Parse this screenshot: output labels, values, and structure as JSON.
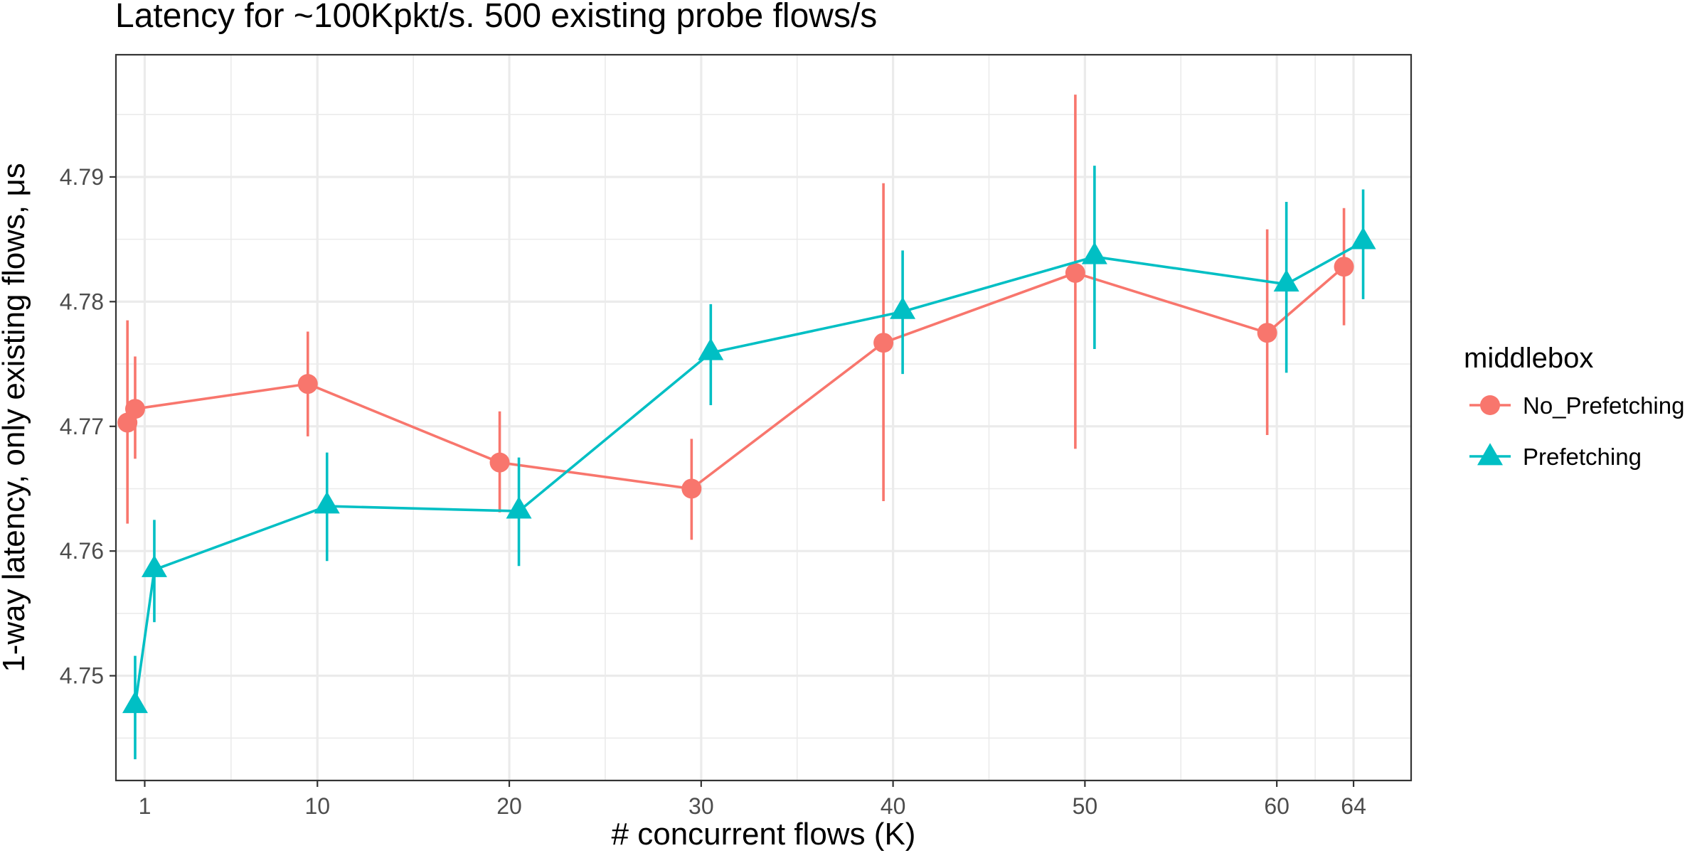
{
  "chart_data": {
    "type": "line",
    "title": "Latency for ~100Kpkt/s. 500 existing probe flows/s",
    "xlabel": "# concurrent flows (K)",
    "ylabel": "1-way latency, only existing flows, μs",
    "xlim": [
      -0.5,
      67.0
    ],
    "ylim": [
      4.7416,
      4.7998
    ],
    "x_ticks": [
      1,
      10,
      20,
      30,
      40,
      50,
      60,
      64
    ],
    "x_tick_labels": [
      "1",
      "10",
      "20",
      "30",
      "40",
      "50",
      "60",
      "64"
    ],
    "y_ticks": [
      4.75,
      4.76,
      4.77,
      4.78,
      4.79
    ],
    "y_tick_labels": [
      "4.75",
      "4.76",
      "4.77",
      "4.78",
      "4.79"
    ],
    "grid": true,
    "legend": {
      "title": "middlebox",
      "position": "right"
    },
    "series": [
      {
        "name": "No_Prefetching",
        "color": "#F8766D",
        "marker": "circle",
        "points": [
          {
            "x": 0.1,
            "y": 4.7703,
            "ymin": 4.7622,
            "ymax": 4.7785
          },
          {
            "x": 0.5,
            "y": 4.7714,
            "ymin": 4.7674,
            "ymax": 4.7756
          },
          {
            "x": 9.5,
            "y": 4.7734,
            "ymin": 4.7692,
            "ymax": 4.7776
          },
          {
            "x": 19.5,
            "y": 4.7671,
            "ymin": 4.7631,
            "ymax": 4.7712
          },
          {
            "x": 29.5,
            "y": 4.765,
            "ymin": 4.7609,
            "ymax": 4.769
          },
          {
            "x": 39.5,
            "y": 4.7767,
            "ymin": 4.764,
            "ymax": 4.7895
          },
          {
            "x": 49.5,
            "y": 4.7823,
            "ymin": 4.7682,
            "ymax": 4.7966
          },
          {
            "x": 59.5,
            "y": 4.7775,
            "ymin": 4.7693,
            "ymax": 4.7858
          },
          {
            "x": 63.5,
            "y": 4.7828,
            "ymin": 4.7781,
            "ymax": 4.7875
          }
        ]
      },
      {
        "name": "Prefetching",
        "color": "#00BFC4",
        "marker": "triangle",
        "points": [
          {
            "x": 0.5,
            "y": 4.7476,
            "ymin": 4.7433,
            "ymax": 4.7516
          },
          {
            "x": 1.5,
            "y": 4.7585,
            "ymin": 4.7543,
            "ymax": 4.7625
          },
          {
            "x": 10.5,
            "y": 4.7636,
            "ymin": 4.7592,
            "ymax": 4.7679
          },
          {
            "x": 20.5,
            "y": 4.7632,
            "ymin": 4.7588,
            "ymax": 4.7675
          },
          {
            "x": 30.5,
            "y": 4.7759,
            "ymin": 4.7717,
            "ymax": 4.7798
          },
          {
            "x": 40.5,
            "y": 4.7792,
            "ymin": 4.7742,
            "ymax": 4.7841
          },
          {
            "x": 50.5,
            "y": 4.7836,
            "ymin": 4.7762,
            "ymax": 4.7909
          },
          {
            "x": 60.5,
            "y": 4.7814,
            "ymin": 4.7743,
            "ymax": 4.788
          },
          {
            "x": 64.5,
            "y": 4.7848,
            "ymin": 4.7802,
            "ymax": 4.789
          }
        ]
      }
    ]
  }
}
